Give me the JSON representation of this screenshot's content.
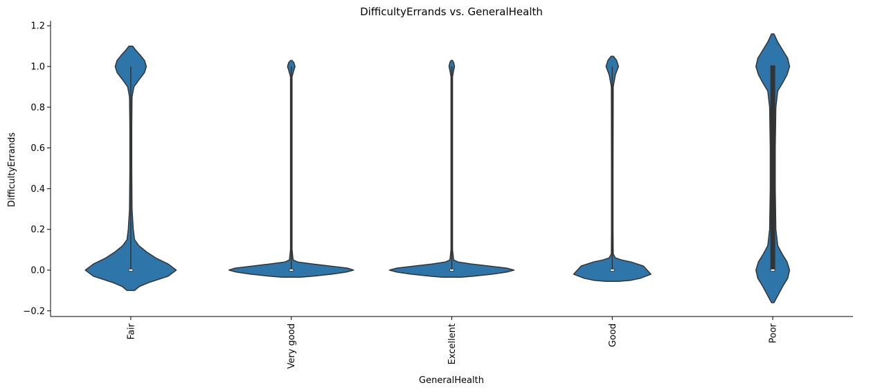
{
  "chart_data": {
    "type": "violin",
    "title": "DifficultyErrands vs. GeneralHealth",
    "xlabel": "GeneralHealth",
    "ylabel": "DifficultyErrands",
    "ylim": [
      -0.22,
      1.22
    ],
    "yticks": [
      -0.2,
      0.0,
      0.2,
      0.4,
      0.6,
      0.8,
      1.0,
      1.2
    ],
    "ytick_labels": [
      "−0.2",
      "0.0",
      "0.2",
      "0.4",
      "0.6",
      "0.8",
      "1.0",
      "1.2"
    ],
    "categories": [
      "Fair",
      "Very good",
      "Excellent",
      "Good",
      "Poor"
    ],
    "color": "#2e75aa",
    "edge_color": "#333333",
    "violins": [
      {
        "category": "Fair",
        "min": 0,
        "max": 1,
        "median": 0,
        "q1": 0,
        "q3": 0,
        "profile": [
          [
            -0.1,
            0.06
          ],
          [
            -0.08,
            0.14
          ],
          [
            -0.06,
            0.3
          ],
          [
            -0.03,
            0.6
          ],
          [
            0.0,
            0.73
          ],
          [
            0.03,
            0.6
          ],
          [
            0.06,
            0.4
          ],
          [
            0.09,
            0.25
          ],
          [
            0.12,
            0.13
          ],
          [
            0.15,
            0.06
          ],
          [
            0.2,
            0.04
          ],
          [
            0.3,
            0.02
          ],
          [
            0.5,
            0.015
          ],
          [
            0.7,
            0.015
          ],
          [
            0.85,
            0.02
          ],
          [
            0.9,
            0.05
          ],
          [
            0.93,
            0.12
          ],
          [
            0.97,
            0.22
          ],
          [
            1.0,
            0.25
          ],
          [
            1.03,
            0.22
          ],
          [
            1.06,
            0.14
          ],
          [
            1.08,
            0.08
          ],
          [
            1.1,
            0.03
          ]
        ]
      },
      {
        "category": "Very good",
        "min": 0,
        "max": 1,
        "median": 0,
        "q1": 0,
        "q3": 0,
        "profile": [
          [
            -0.035,
            0.15
          ],
          [
            -0.03,
            0.35
          ],
          [
            -0.02,
            0.65
          ],
          [
            -0.01,
            0.88
          ],
          [
            0.0,
            1.0
          ],
          [
            0.01,
            0.9
          ],
          [
            0.02,
            0.62
          ],
          [
            0.03,
            0.35
          ],
          [
            0.04,
            0.1
          ],
          [
            0.05,
            0.03
          ],
          [
            0.1,
            0.012
          ],
          [
            0.5,
            0.012
          ],
          [
            0.95,
            0.012
          ],
          [
            0.98,
            0.04
          ],
          [
            1.0,
            0.06
          ],
          [
            1.02,
            0.04
          ],
          [
            1.03,
            0.01
          ]
        ]
      },
      {
        "category": "Excellent",
        "min": 0,
        "max": 1,
        "median": 0,
        "q1": 0,
        "q3": 0,
        "profile": [
          [
            -0.035,
            0.15
          ],
          [
            -0.03,
            0.35
          ],
          [
            -0.02,
            0.65
          ],
          [
            -0.01,
            0.88
          ],
          [
            0.0,
            1.0
          ],
          [
            0.01,
            0.88
          ],
          [
            0.02,
            0.6
          ],
          [
            0.03,
            0.32
          ],
          [
            0.04,
            0.1
          ],
          [
            0.05,
            0.03
          ],
          [
            0.1,
            0.012
          ],
          [
            0.5,
            0.012
          ],
          [
            0.95,
            0.012
          ],
          [
            0.98,
            0.03
          ],
          [
            1.0,
            0.045
          ],
          [
            1.02,
            0.03
          ],
          [
            1.03,
            0.01
          ]
        ]
      },
      {
        "category": "Good",
        "min": 0,
        "max": 1,
        "median": 0,
        "q1": 0,
        "q3": 0,
        "profile": [
          [
            -0.055,
            0.1
          ],
          [
            -0.05,
            0.3
          ],
          [
            -0.04,
            0.45
          ],
          [
            -0.02,
            0.62
          ],
          [
            0.0,
            0.56
          ],
          [
            0.02,
            0.5
          ],
          [
            0.04,
            0.3
          ],
          [
            0.05,
            0.15
          ],
          [
            0.06,
            0.05
          ],
          [
            0.08,
            0.015
          ],
          [
            0.2,
            0.012
          ],
          [
            0.5,
            0.012
          ],
          [
            0.9,
            0.015
          ],
          [
            0.96,
            0.05
          ],
          [
            1.0,
            0.1
          ],
          [
            1.03,
            0.07
          ],
          [
            1.05,
            0.02
          ]
        ]
      },
      {
        "category": "Poor",
        "min": 0,
        "max": 1,
        "median": 0,
        "q1": 0,
        "q3": 1,
        "profile": [
          [
            -0.16,
            0.02
          ],
          [
            -0.12,
            0.09
          ],
          [
            -0.08,
            0.16
          ],
          [
            -0.04,
            0.24
          ],
          [
            0.0,
            0.27
          ],
          [
            0.04,
            0.23
          ],
          [
            0.08,
            0.15
          ],
          [
            0.12,
            0.08
          ],
          [
            0.2,
            0.05
          ],
          [
            0.4,
            0.04
          ],
          [
            0.6,
            0.04
          ],
          [
            0.8,
            0.05
          ],
          [
            0.88,
            0.08
          ],
          [
            0.92,
            0.16
          ],
          [
            0.96,
            0.23
          ],
          [
            1.0,
            0.27
          ],
          [
            1.04,
            0.24
          ],
          [
            1.08,
            0.16
          ],
          [
            1.12,
            0.08
          ],
          [
            1.16,
            0.02
          ]
        ]
      }
    ]
  }
}
